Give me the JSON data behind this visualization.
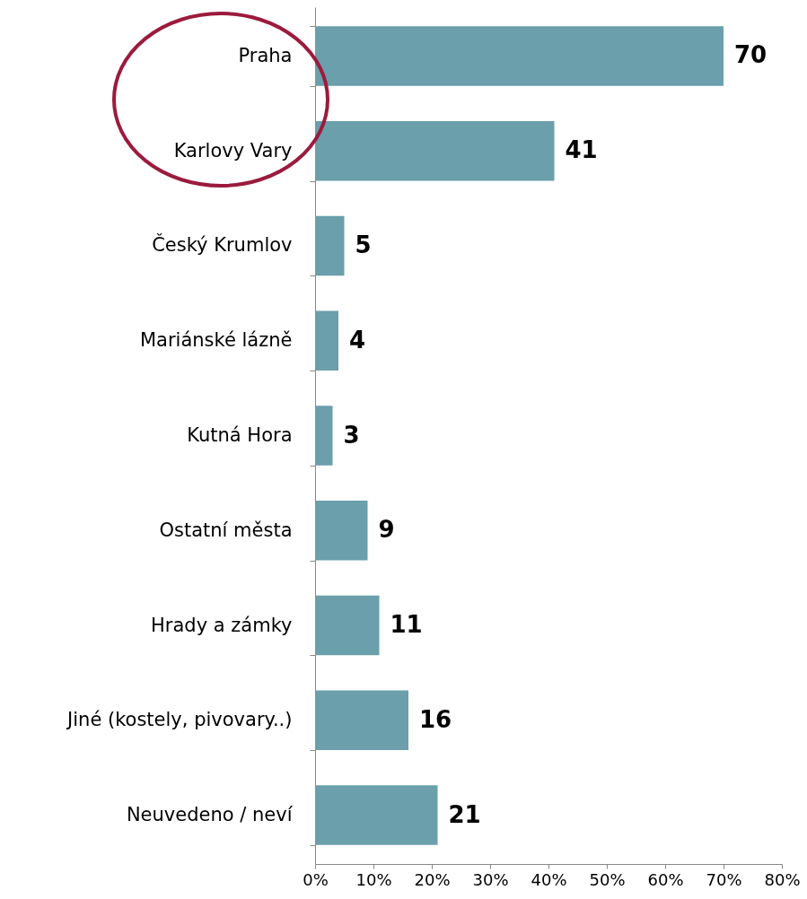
{
  "chart_data": {
    "type": "bar",
    "orientation": "horizontal",
    "categories": [
      "Praha",
      "Karlovy Vary",
      "Český Krumlov",
      "Mariánské lázně",
      "Kutná Hora",
      "Ostatní města",
      "Hrady a zámky",
      "Jiné (kostely, pivovary..)",
      "Neuvedeno / neví"
    ],
    "values": [
      70,
      41,
      5,
      4,
      3,
      9,
      11,
      16,
      21
    ],
    "color": "#6a9fab",
    "data_labels": true,
    "grid": false,
    "xlim": [
      0,
      80
    ],
    "xticks": [
      {
        "value": 0,
        "label": "0%"
      },
      {
        "value": 10,
        "label": "10%"
      },
      {
        "value": 20,
        "label": "20%"
      },
      {
        "value": 30,
        "label": "30%"
      },
      {
        "value": 40,
        "label": "40%"
      },
      {
        "value": 50,
        "label": "50%"
      },
      {
        "value": 60,
        "label": "60%"
      },
      {
        "value": 70,
        "label": "70%"
      },
      {
        "value": 80,
        "label": "80%"
      }
    ]
  }
}
